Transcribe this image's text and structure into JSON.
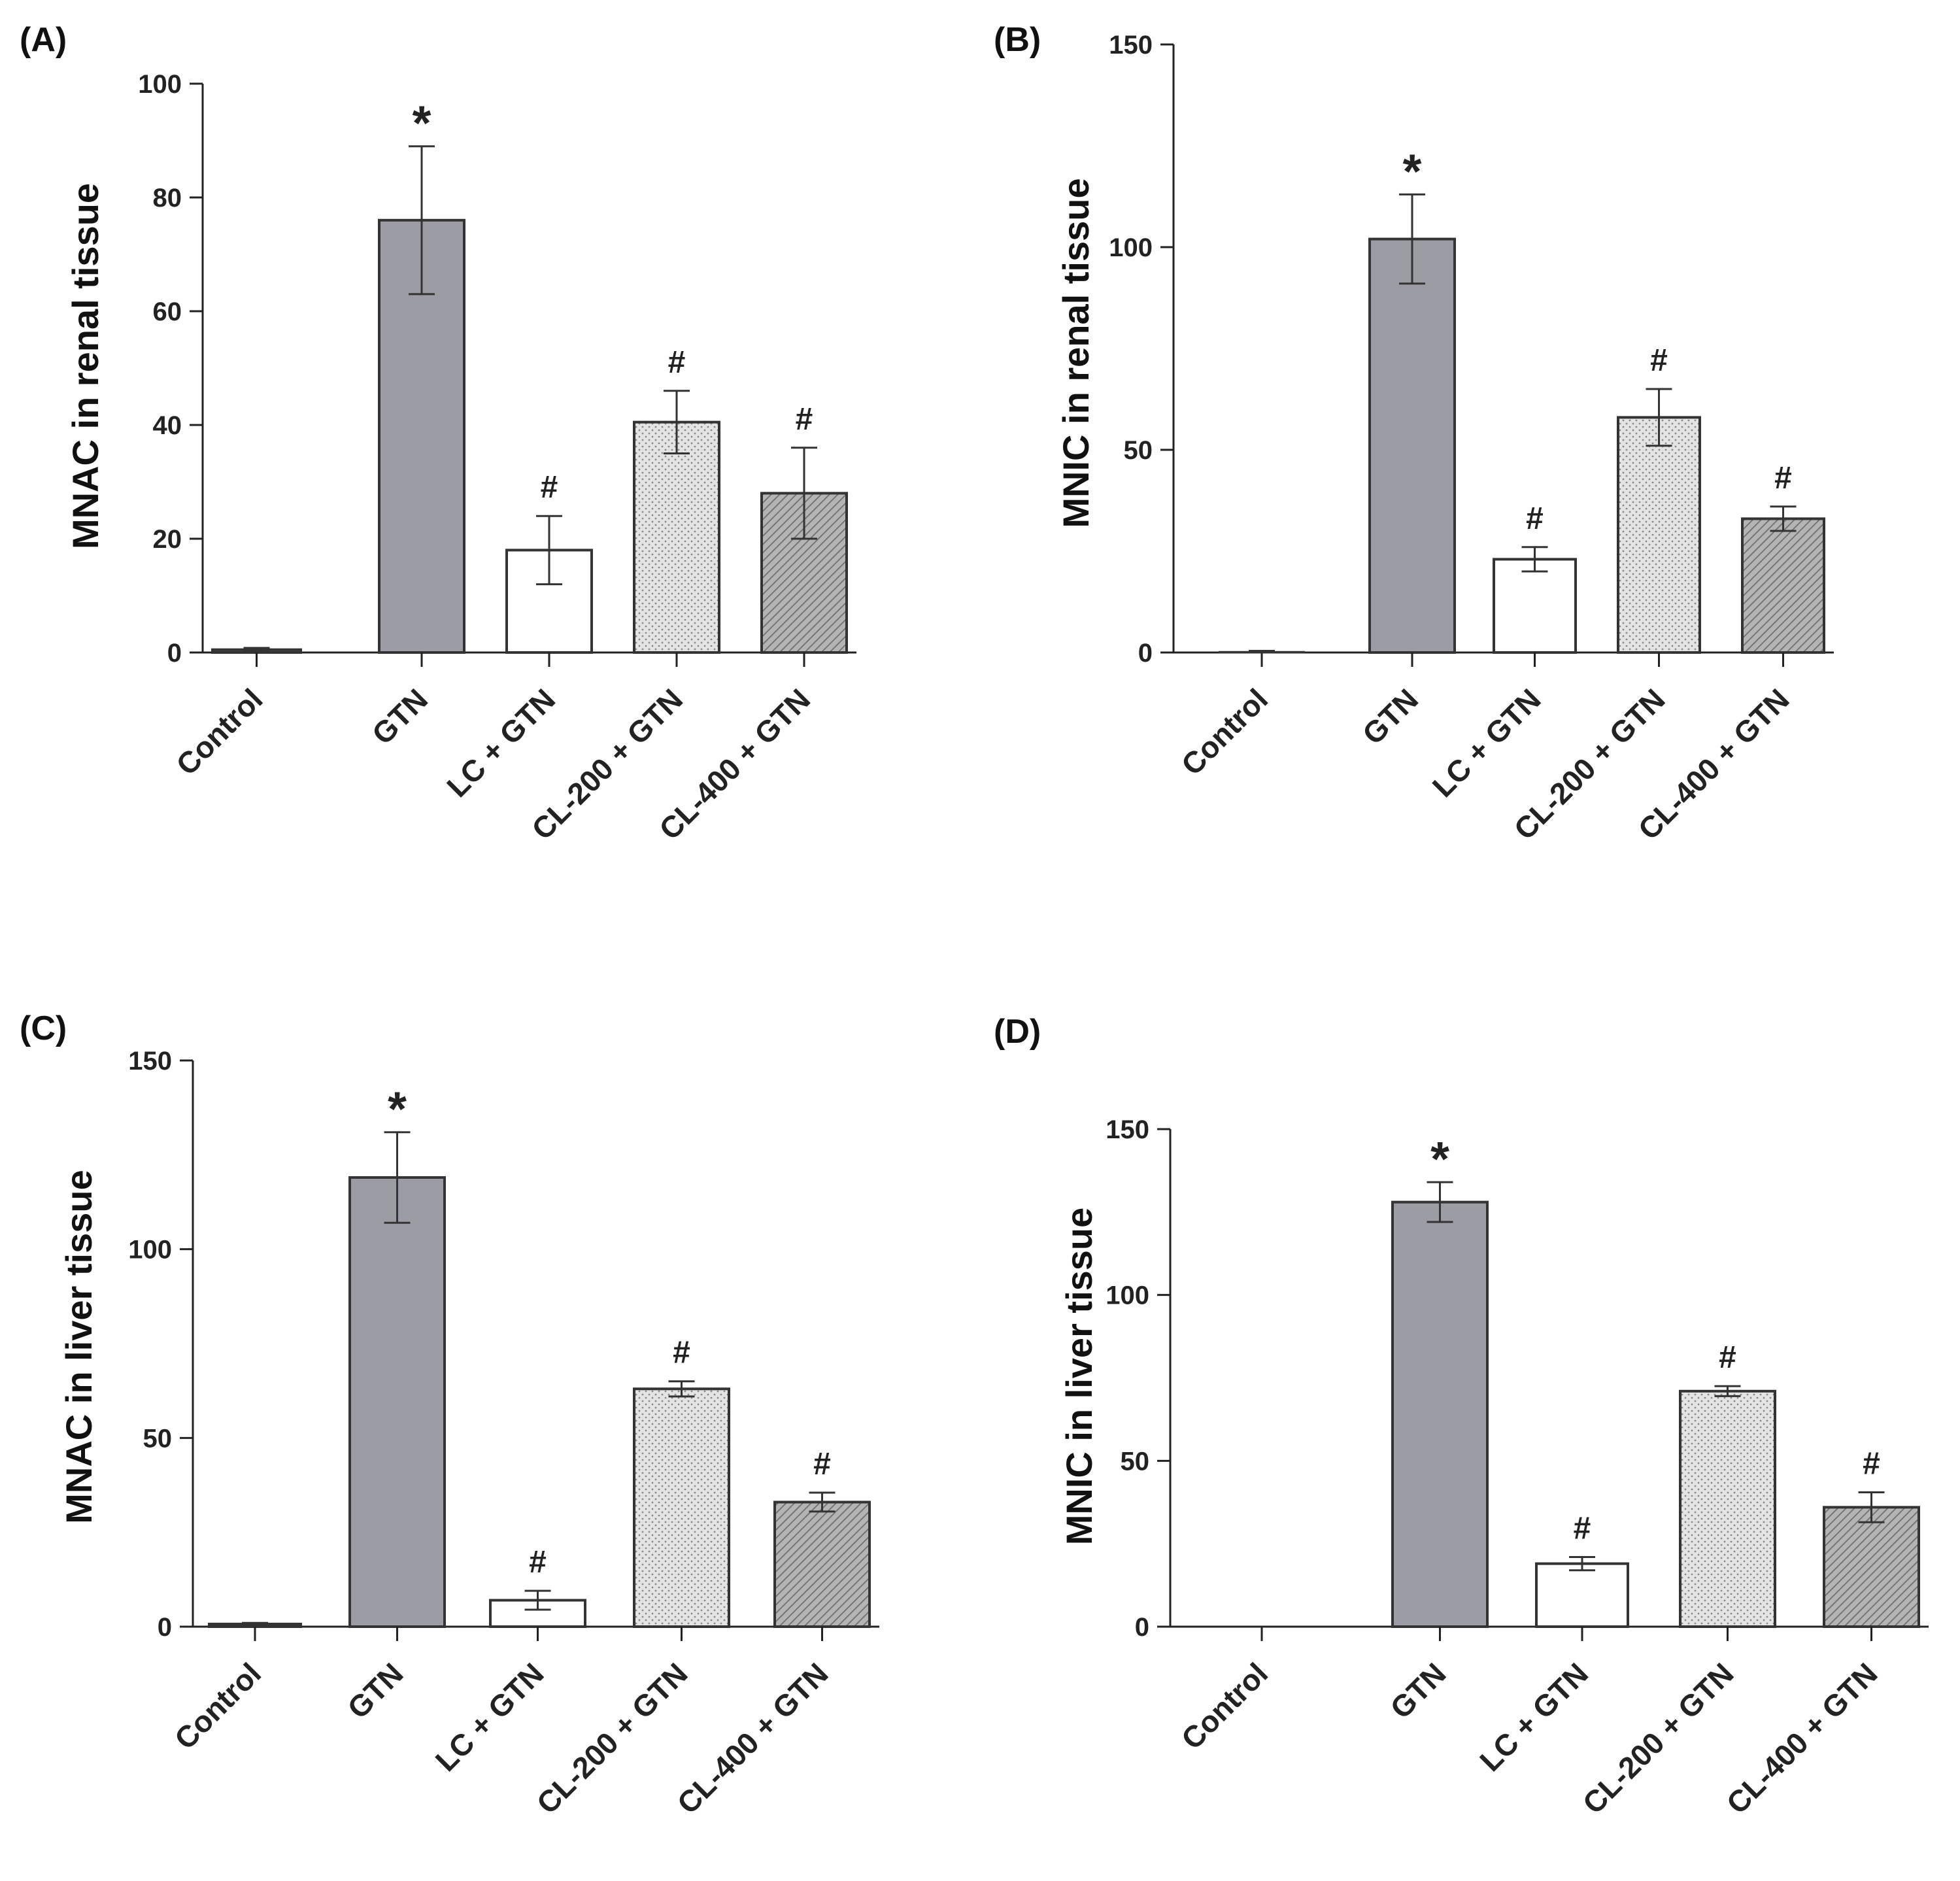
{
  "colors": {
    "control": "#666666",
    "gtn": "#9c9ca4",
    "lc_gtn": "#ffffff",
    "cl200_gtn": "#e2e2e2",
    "cl400_gtn": "#a7a7a7",
    "axis": "#222222",
    "error_bar": "#333333"
  },
  "chart_data": [
    {
      "id": "A",
      "type": "bar",
      "panel_label": "(A)",
      "title": "",
      "xlabel": "",
      "ylabel": "MNAC in renal tissue",
      "ylim": [
        0,
        100
      ],
      "yticks": [
        0,
        20,
        40,
        60,
        80,
        100
      ],
      "ytick_labels": [
        "0",
        "20",
        "40",
        "60",
        "80",
        "100"
      ],
      "categories": [
        "Control",
        "GTN",
        "LC + GTN",
        "CL-200 + GTN",
        "CL-400 + GTN"
      ],
      "values": [
        0.5,
        76,
        18,
        40.5,
        28
      ],
      "errors": [
        0.3,
        13,
        6,
        5.5,
        8
      ],
      "significance": [
        "",
        "*",
        "#",
        "#",
        "#"
      ]
    },
    {
      "id": "B",
      "type": "bar",
      "panel_label": "(B)",
      "title": "",
      "xlabel": "",
      "ylabel": "MNIC in renal tissue",
      "ylim": [
        0,
        150
      ],
      "yticks": [
        0,
        50,
        100,
        150
      ],
      "ytick_labels": [
        "0",
        "50",
        "100",
        "150"
      ],
      "categories": [
        "Control",
        "GTN",
        "LC + GTN",
        "CL-200 + GTN",
        "CL-400 + GTN"
      ],
      "values": [
        0.2,
        102,
        23,
        58,
        33
      ],
      "errors": [
        0.2,
        11,
        3,
        7,
        3
      ],
      "significance": [
        "",
        "*",
        "#",
        "#",
        "#"
      ]
    },
    {
      "id": "C",
      "type": "bar",
      "panel_label": "(C)",
      "title": "",
      "xlabel": "",
      "ylabel": "MNAC in liver tissue",
      "ylim": [
        0,
        150
      ],
      "yticks": [
        0,
        50,
        100,
        150
      ],
      "ytick_labels": [
        "0",
        "50",
        "100",
        "150"
      ],
      "categories": [
        "Control",
        "GTN",
        "LC + GTN",
        "CL-200 + GTN",
        "CL-400 + GTN"
      ],
      "values": [
        0.7,
        119,
        7,
        63,
        33
      ],
      "errors": [
        0.3,
        12,
        2.5,
        2,
        2.5
      ],
      "significance": [
        "",
        "*",
        "#",
        "#",
        "#"
      ]
    },
    {
      "id": "D",
      "type": "bar",
      "panel_label": "(D)",
      "title": "",
      "xlabel": "",
      "ylabel": "MNIC in liver tissue",
      "ylim": [
        0,
        150
      ],
      "yticks": [
        0,
        50,
        100,
        150
      ],
      "ytick_labels": [
        "0",
        "50",
        "100",
        "150"
      ],
      "categories": [
        "Control",
        "GTN",
        "LC + GTN",
        "CL-200 + GTN",
        "CL-400 + GTN"
      ],
      "values": [
        0,
        128,
        19,
        71,
        36
      ],
      "errors": [
        0,
        6,
        2,
        1.5,
        4.5
      ],
      "significance": [
        "",
        "*",
        "#",
        "#",
        "#"
      ]
    }
  ]
}
